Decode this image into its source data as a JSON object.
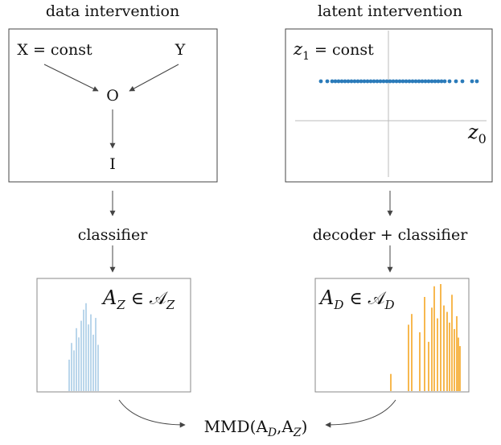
{
  "left_panel": {
    "title": "data intervention",
    "nodes": {
      "x": "X = const",
      "y": "Y",
      "o": "O",
      "i": "I"
    },
    "stage_label": "classifier",
    "histogram": {
      "label_main": "A",
      "label_sub": "Z",
      "label_rest": " ∈ 𝒜",
      "label_set_sub": "Z",
      "color": "#a9cbe6",
      "bars": [
        0.34,
        0.52,
        0.44,
        0.68,
        0.58,
        0.76,
        0.88,
        0.95,
        0.72,
        0.83,
        0.61,
        0.79,
        0.5
      ]
    }
  },
  "right_panel": {
    "title": "latent intervention",
    "axis_label_y": "z",
    "axis_label_y_sub": "1",
    "axis_label_y_rest": " = const",
    "axis_label_x": "z",
    "axis_label_x_sub": "0",
    "scatter_color": "#2b7bba",
    "scatter_x": [
      -0.98,
      -0.9,
      -0.84,
      -0.8,
      -0.76,
      -0.72,
      -0.68,
      -0.64,
      -0.6,
      -0.56,
      -0.52,
      -0.48,
      -0.44,
      -0.4,
      -0.36,
      -0.32,
      -0.28,
      -0.24,
      -0.2,
      -0.16,
      -0.12,
      -0.08,
      -0.04,
      0.0,
      0.04,
      0.08,
      0.12,
      0.16,
      0.2,
      0.24,
      0.28,
      0.32,
      0.36,
      0.4,
      0.44,
      0.48,
      0.52,
      0.56,
      0.62,
      0.7,
      0.78,
      0.9,
      0.96
    ],
    "stage_label": "decoder + classifier",
    "histogram": {
      "label_main": "A",
      "label_sub": "D",
      "label_rest": " ∈ 𝒜",
      "label_set_sub": "D",
      "color": "#f5a623",
      "bars": [
        0.16,
        0.62,
        0.72,
        0.55,
        0.88,
        0.46,
        0.78,
        0.98,
        0.68,
        1.0,
        0.8,
        0.74,
        0.64,
        0.9,
        0.58,
        0.7,
        0.5,
        0.42
      ]
    }
  },
  "result": {
    "label": "MMD(A",
    "sub1": "D",
    "mid": ",A",
    "sub2": "Z",
    "end": ")"
  }
}
